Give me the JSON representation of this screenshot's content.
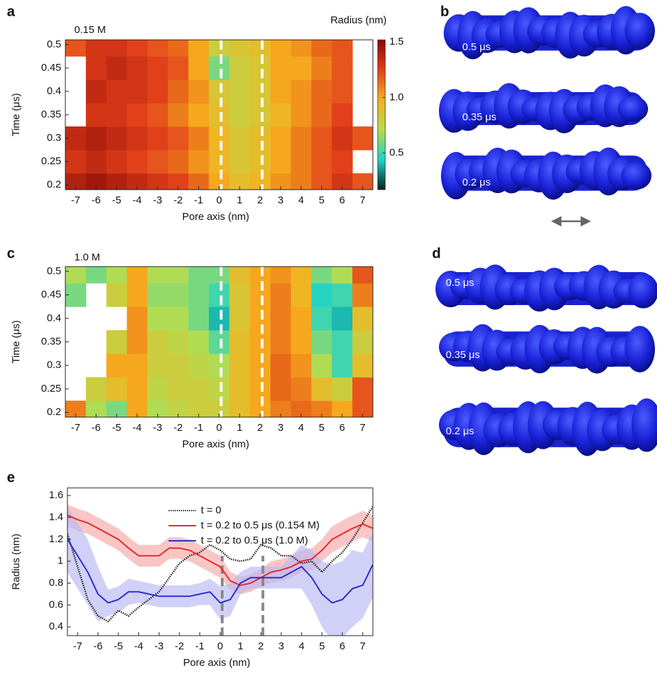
{
  "chart_data": [
    {
      "type": "heatmap",
      "panel": "a",
      "annotation": "0.15 M",
      "xlabel": "Pore axis (nm)",
      "ylabel": "Time (μs)",
      "x": [
        -7,
        -6,
        -5,
        -4,
        -3,
        -2,
        -1,
        0,
        1,
        2,
        3,
        4,
        5,
        6,
        7
      ],
      "y": [
        0.2,
        0.25,
        0.3,
        0.35,
        0.4,
        0.45,
        0.5
      ],
      "z": [
        [
          1.4,
          1.45,
          1.4,
          1.35,
          1.3,
          1.25,
          1.15,
          1.0,
          0.9,
          0.95,
          1.05,
          1.1,
          1.2,
          1.3,
          1.2
        ],
        [
          1.3,
          1.35,
          1.3,
          1.25,
          1.2,
          1.15,
          1.05,
          0.95,
          0.85,
          0.9,
          1.0,
          1.1,
          1.2,
          1.25,
          null
        ],
        [
          1.35,
          1.4,
          1.35,
          1.3,
          1.25,
          1.2,
          1.1,
          0.95,
          0.85,
          0.9,
          1.0,
          1.1,
          1.2,
          1.3,
          1.2
        ],
        [
          null,
          1.3,
          1.3,
          1.25,
          1.2,
          1.1,
          1.0,
          0.9,
          0.8,
          0.85,
          0.95,
          1.05,
          1.15,
          1.25,
          null
        ],
        [
          null,
          1.35,
          1.3,
          1.3,
          1.25,
          1.15,
          1.05,
          0.85,
          0.8,
          0.85,
          1.0,
          1.05,
          1.15,
          1.2,
          null
        ],
        [
          null,
          1.3,
          1.35,
          1.3,
          1.25,
          1.2,
          1.0,
          0.6,
          0.8,
          0.85,
          1.0,
          1.0,
          1.1,
          1.2,
          null
        ],
        [
          1.2,
          1.3,
          1.3,
          1.25,
          1.2,
          1.15,
          1.0,
          0.8,
          0.85,
          0.9,
          1.0,
          1.05,
          1.15,
          1.2,
          null
        ]
      ],
      "xlim": [
        -7.5,
        7.5
      ],
      "ylim": [
        0.19,
        0.51
      ],
      "xticks": [
        -7,
        -6,
        -5,
        -4,
        -3,
        -2,
        -1,
        0,
        1,
        2,
        3,
        4,
        5,
        6,
        7
      ],
      "yticks": [
        0.2,
        0.25,
        0.3,
        0.35,
        0.4,
        0.45,
        0.5
      ],
      "pore_bounds": [
        0.1,
        2.1
      ],
      "colormap": [
        "#06211c",
        "#1fd3c8",
        "#b6dc4e",
        "#f6b01e",
        "#e2401a",
        "#8a0808"
      ],
      "zlim": [
        0.17,
        1.52
      ],
      "colorbar": true,
      "colorbar_label": "Radius (nm)",
      "zticks": [
        0.5,
        {
          "value": 1,
          "label": "1.0"
        },
        1.5
      ]
    },
    {
      "type": "heatmap",
      "panel": "c",
      "annotation": "1.0 M",
      "xlabel": "Pore axis (nm)",
      "ylabel": "Time (μs)",
      "x": [
        -7,
        -6,
        -5,
        -4,
        -3,
        -2,
        -1,
        0,
        1,
        2,
        3,
        4,
        5,
        6,
        7
      ],
      "y": [
        0.2,
        0.25,
        0.3,
        0.35,
        0.4,
        0.45,
        0.5
      ],
      "z": [
        [
          1.1,
          0.7,
          0.6,
          1.0,
          0.7,
          0.75,
          0.8,
          0.8,
          0.9,
          1.0,
          1.1,
          1.15,
          1.1,
          1.0,
          1.2
        ],
        [
          null,
          0.8,
          0.9,
          1.0,
          0.75,
          0.8,
          0.8,
          0.75,
          0.9,
          1.0,
          1.15,
          1.1,
          0.9,
          0.8,
          1.2
        ],
        [
          null,
          null,
          1.0,
          1.0,
          0.8,
          0.8,
          0.75,
          0.7,
          0.9,
          1.0,
          1.15,
          1.05,
          0.7,
          0.5,
          0.9
        ],
        [
          null,
          null,
          0.8,
          1.05,
          0.8,
          0.75,
          0.7,
          0.55,
          0.9,
          1.0,
          1.1,
          1.0,
          0.6,
          0.5,
          0.8
        ],
        [
          null,
          null,
          null,
          1.05,
          0.7,
          0.7,
          0.6,
          0.4,
          0.85,
          1.0,
          1.1,
          1.0,
          0.5,
          0.4,
          0.9
        ],
        [
          0.6,
          null,
          0.8,
          1.0,
          0.65,
          0.65,
          0.6,
          0.5,
          0.85,
          1.0,
          1.1,
          0.95,
          0.45,
          0.5,
          1.1
        ],
        [
          0.7,
          0.6,
          0.7,
          1.0,
          0.7,
          0.7,
          0.6,
          0.6,
          0.9,
          1.0,
          1.05,
          0.95,
          0.6,
          0.7,
          1.2
        ]
      ],
      "xlim": [
        -7.5,
        7.5
      ],
      "ylim": [
        0.19,
        0.51
      ],
      "xticks": [
        -7,
        -6,
        -5,
        -4,
        -3,
        -2,
        -1,
        0,
        1,
        2,
        3,
        4,
        5,
        6,
        7
      ],
      "yticks": [
        0.2,
        0.25,
        0.3,
        0.35,
        0.4,
        0.45,
        0.5
      ],
      "pore_bounds": [
        0.1,
        2.1
      ],
      "colormap": [
        "#06211c",
        "#1fd3c8",
        "#b6dc4e",
        "#f6b01e",
        "#e2401a",
        "#8a0808"
      ],
      "zlim": [
        0.17,
        1.52
      ]
    },
    {
      "type": "line",
      "panel": "e",
      "xlabel": "Pore axis (nm)",
      "ylabel": "Radius (nm)",
      "x": [
        -7.5,
        -7,
        -6.5,
        -6,
        -5.5,
        -5,
        -4.5,
        -4,
        -3.5,
        -3,
        -2.5,
        -2,
        -1.5,
        -1,
        -0.5,
        0,
        0.5,
        1,
        1.5,
        2,
        2.5,
        3,
        3.5,
        4,
        4.5,
        5,
        5.5,
        6,
        6.5,
        7,
        7.5
      ],
      "series": [
        {
          "name": "t = 0",
          "color": "#222222",
          "style": "dotted",
          "values": [
            1.25,
            0.95,
            0.65,
            0.5,
            0.45,
            0.55,
            0.5,
            0.58,
            0.65,
            0.72,
            0.85,
            0.98,
            1.05,
            1.08,
            1.15,
            1.1,
            1.02,
            1.0,
            1.02,
            1.15,
            1.12,
            1.05,
            1.05,
            0.98,
            1.0,
            0.9,
            1.0,
            1.08,
            1.2,
            1.35,
            1.5
          ]
        },
        {
          "name": "t = 0.2 to 0.5 μs (0.154 M)",
          "color": "#e8262b",
          "band_color": "#f6a8a8",
          "values": [
            1.42,
            1.38,
            1.35,
            1.3,
            1.25,
            1.2,
            1.12,
            1.05,
            1.05,
            1.05,
            1.12,
            1.12,
            1.1,
            1.05,
            1.0,
            0.95,
            0.82,
            0.78,
            0.8,
            0.85,
            0.9,
            0.92,
            0.95,
            1.0,
            1.02,
            1.1,
            1.2,
            1.25,
            1.3,
            1.34,
            1.3
          ],
          "spread": [
            0.1,
            0.1,
            0.1,
            0.1,
            0.1,
            0.1,
            0.1,
            0.1,
            0.1,
            0.1,
            0.1,
            0.1,
            0.1,
            0.1,
            0.1,
            0.1,
            0.08,
            0.08,
            0.08,
            0.08,
            0.1,
            0.1,
            0.1,
            0.1,
            0.1,
            0.1,
            0.12,
            0.12,
            0.12,
            0.12,
            0.12
          ]
        },
        {
          "name": "t = 0.2 to 0.5 μs (1.0 M)",
          "color": "#2b2bd0",
          "band_color": "#b9b9f2",
          "values": [
            1.2,
            1.05,
            0.9,
            0.7,
            0.62,
            0.65,
            0.72,
            0.72,
            0.7,
            0.68,
            0.68,
            0.68,
            0.68,
            0.7,
            0.72,
            0.62,
            0.65,
            0.8,
            0.85,
            0.85,
            0.85,
            0.85,
            0.9,
            0.95,
            0.85,
            0.7,
            0.62,
            0.65,
            0.75,
            0.78,
            0.97
          ],
          "spread": [
            0.3,
            0.3,
            0.3,
            0.25,
            0.12,
            0.12,
            0.12,
            0.1,
            0.1,
            0.1,
            0.1,
            0.1,
            0.1,
            0.1,
            0.12,
            0.15,
            0.15,
            0.1,
            0.1,
            0.1,
            0.1,
            0.1,
            0.15,
            0.2,
            0.25,
            0.3,
            0.35,
            0.35,
            0.35,
            0.3,
            0.3
          ]
        }
      ],
      "xlim": [
        -7.5,
        7.5
      ],
      "ylim": [
        0.32,
        1.67
      ],
      "xticks": [
        -7,
        -6,
        -5,
        -4,
        -3,
        -2,
        -1,
        0,
        1,
        2,
        3,
        4,
        5,
        6,
        7
      ],
      "yticks": [
        0.4,
        0.6,
        0.8,
        1,
        1.2,
        1.4,
        1.6
      ],
      "pore_bounds": [
        0.1,
        2.1
      ]
    }
  ],
  "renderings": [
    {
      "panel": "b",
      "labels": [
        "0.5 μs",
        "0.35 μs",
        "0.2 μs"
      ]
    },
    {
      "panel": "d",
      "labels": [
        "0.5 μs",
        "0.35 μs",
        "0.2 μs"
      ]
    }
  ]
}
